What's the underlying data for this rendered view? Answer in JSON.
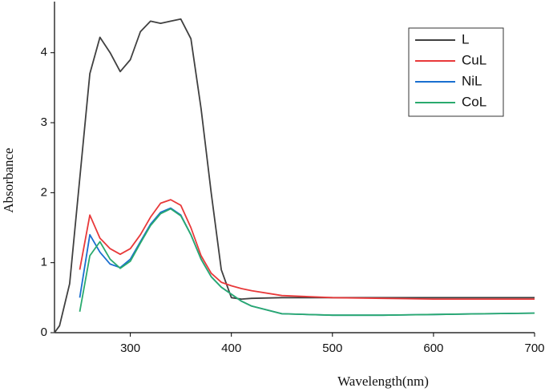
{
  "chart_data": {
    "type": "line",
    "x_label": "Wavelength(nm)",
    "y_label": "Absorbance",
    "x": [
      225,
      230,
      240,
      250,
      260,
      270,
      280,
      290,
      300,
      310,
      320,
      330,
      340,
      350,
      360,
      370,
      380,
      390,
      400,
      410,
      420,
      450,
      500,
      550,
      600,
      650,
      700
    ],
    "series": [
      {
        "name": "L",
        "color": "#404040",
        "values": [
          0,
          0.1,
          0.7,
          2.2,
          3.7,
          4.22,
          4.0,
          3.73,
          3.9,
          4.3,
          4.45,
          4.42,
          4.45,
          4.48,
          4.2,
          3.2,
          2.0,
          0.9,
          0.5,
          0.48,
          0.49,
          0.5,
          0.5,
          0.5,
          0.5,
          0.5,
          0.5
        ]
      },
      {
        "name": "CuL",
        "color": "#e8393a",
        "values": [
          null,
          null,
          null,
          0.9,
          1.68,
          1.35,
          1.2,
          1.12,
          1.2,
          1.4,
          1.65,
          1.85,
          1.9,
          1.82,
          1.5,
          1.1,
          0.85,
          0.72,
          0.67,
          0.63,
          0.6,
          0.53,
          0.5,
          0.49,
          0.48,
          0.48,
          0.48
        ]
      },
      {
        "name": "NiL",
        "color": "#1a6fd0",
        "values": [
          null,
          null,
          null,
          0.5,
          1.4,
          1.15,
          0.98,
          0.93,
          1.05,
          1.3,
          1.55,
          1.72,
          1.78,
          1.68,
          1.4,
          1.05,
          0.8,
          0.65,
          0.55,
          0.45,
          0.38,
          0.27,
          0.25,
          0.25,
          0.26,
          0.27,
          0.28
        ]
      },
      {
        "name": "CoL",
        "color": "#2aaa6e",
        "values": [
          null,
          null,
          null,
          0.3,
          1.1,
          1.3,
          1.05,
          0.92,
          1.02,
          1.28,
          1.53,
          1.7,
          1.77,
          1.67,
          1.4,
          1.05,
          0.8,
          0.65,
          0.55,
          0.45,
          0.38,
          0.27,
          0.25,
          0.25,
          0.26,
          0.27,
          0.28
        ]
      }
    ],
    "xlim": [
      225,
      700
    ],
    "ylim": [
      0,
      4.73
    ],
    "xticks": [
      300,
      400,
      500,
      600,
      700
    ],
    "yticks": [
      0,
      1,
      2,
      3,
      4
    ],
    "grid": false,
    "legend": "upper right"
  }
}
